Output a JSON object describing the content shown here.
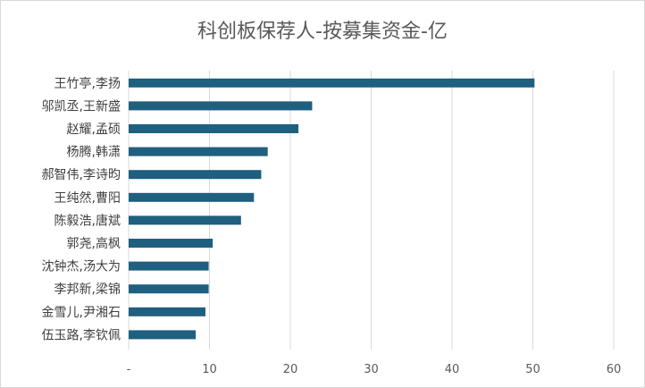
{
  "chart_data": {
    "type": "bar",
    "orientation": "horizontal",
    "title": "科创板保荐人-按募集资金-亿",
    "xlabel": "",
    "ylabel": "",
    "xlim": [
      0,
      60
    ],
    "x_ticks": [
      0,
      10,
      20,
      30,
      40,
      50,
      60
    ],
    "x_tick_labels": [
      "-",
      "10",
      "20",
      "30",
      "40",
      "50",
      "60"
    ],
    "grid": "vertical",
    "legend": "none",
    "bar_color": "#1f5f7f",
    "categories": [
      "王竹亭,李扬",
      "邬凯丞,王新盛",
      "赵耀,孟硕",
      "杨腾,韩潇",
      "郝智伟,李诗昀",
      "王纯然,曹阳",
      "陈毅浩,唐斌",
      "郭尧,高枫",
      "沈钟杰,汤大为",
      "李邦新,梁锦",
      "金雪儿,尹湘石",
      "伍玉路,李钦佩"
    ],
    "values": [
      50.2,
      22.7,
      21.0,
      17.2,
      16.4,
      15.5,
      13.9,
      10.4,
      9.9,
      9.9,
      9.5,
      8.3
    ]
  }
}
